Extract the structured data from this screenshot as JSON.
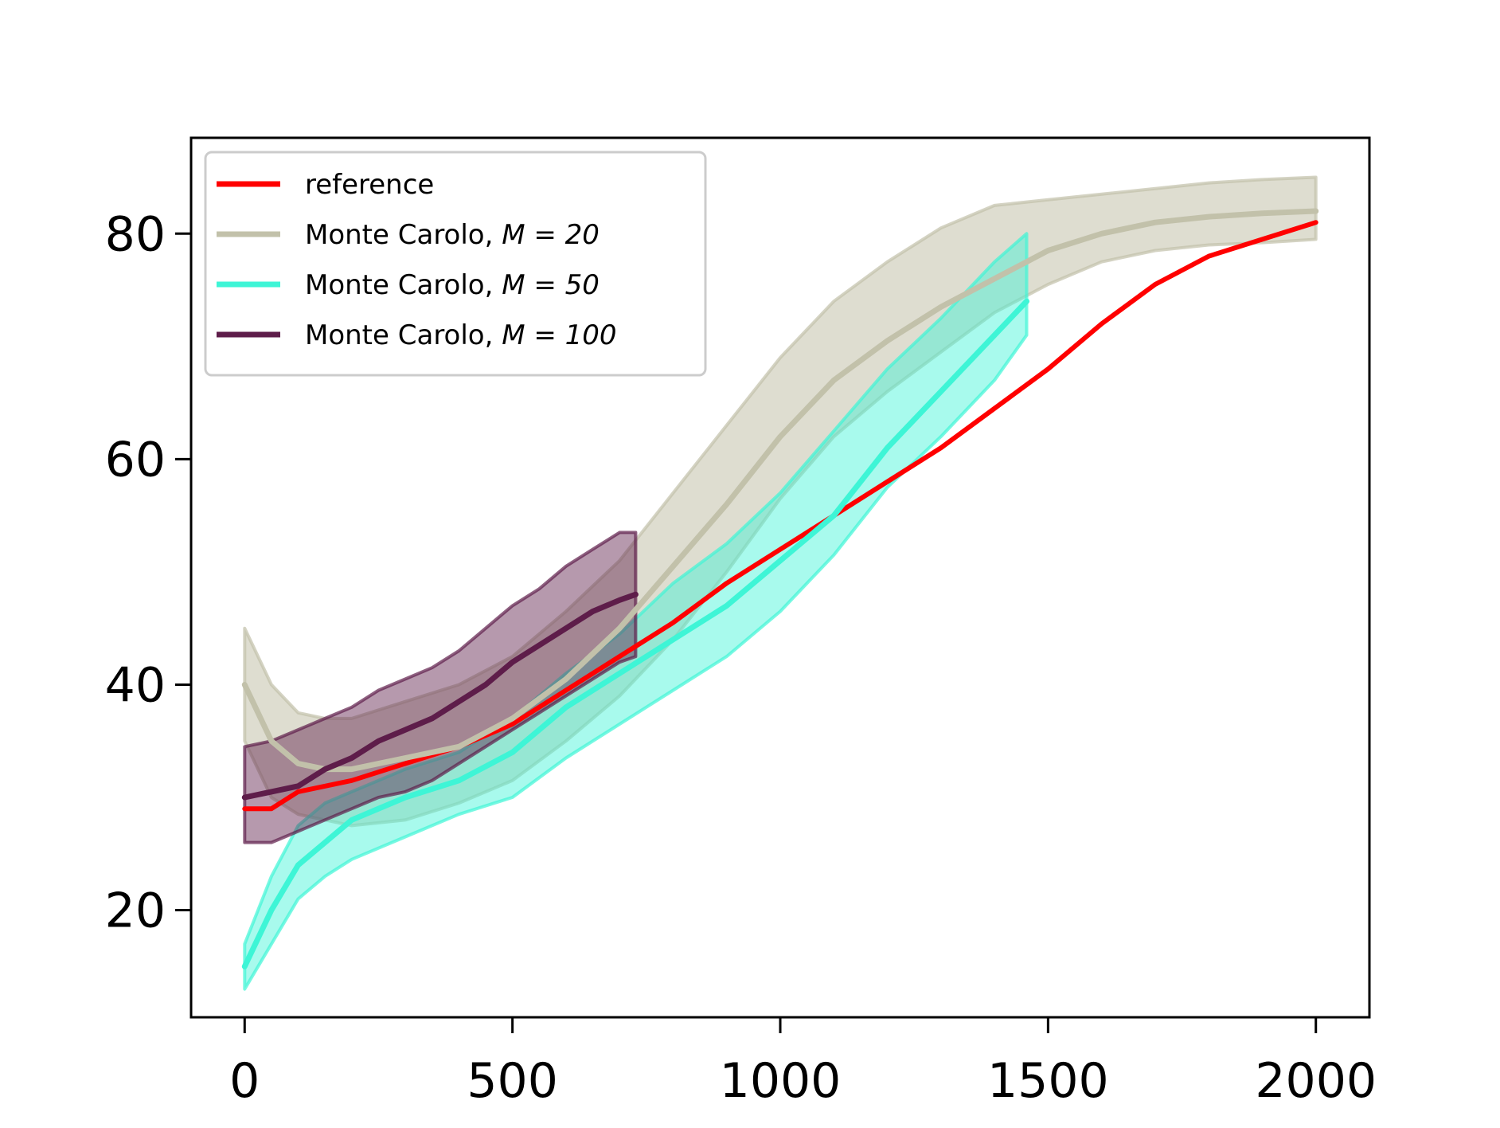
{
  "chart_data": {
    "type": "line",
    "title": "",
    "xlabel": "",
    "ylabel": "",
    "xlim": [
      -100,
      2100
    ],
    "ylim": [
      10.5,
      88.5
    ],
    "xticks": [
      0,
      500,
      1000,
      1500,
      2000
    ],
    "yticks": [
      20,
      40,
      60,
      80
    ],
    "grid": false,
    "legend_position": "upper-left",
    "series": [
      {
        "name": "reference",
        "color": "#ff0000",
        "x": [
          0,
          50,
          100,
          200,
          300,
          400,
          500,
          600,
          700,
          800,
          900,
          1000,
          1100,
          1200,
          1300,
          1400,
          1500,
          1600,
          1700,
          1800,
          1900,
          2000
        ],
        "y": [
          29,
          29,
          30.5,
          31.5,
          33,
          34.5,
          36.5,
          39.5,
          42.5,
          45.5,
          49,
          52,
          55,
          58,
          61,
          64.5,
          68,
          72,
          75.5,
          78,
          79.5,
          81
        ]
      },
      {
        "name": "Monte Carolo, $M=20$",
        "legend_label": "Monte Carolo, ",
        "legend_math": "M = 20",
        "color": "#c2c1aa",
        "band_opacity": 0.55,
        "x": [
          0,
          50,
          100,
          150,
          200,
          300,
          400,
          500,
          600,
          700,
          800,
          900,
          1000,
          1100,
          1200,
          1300,
          1400,
          1500,
          1600,
          1700,
          1800,
          1900,
          2000
        ],
        "y": [
          40,
          35,
          33,
          32.5,
          32.5,
          33.5,
          34.5,
          37,
          40.5,
          45,
          50.5,
          56,
          62,
          67,
          70.5,
          73.5,
          76,
          78.5,
          80,
          81,
          81.5,
          81.8,
          82
        ],
        "lower": [
          35,
          30,
          28.5,
          28,
          27.5,
          28,
          29.5,
          31.5,
          35,
          39,
          44,
          50,
          56.5,
          62,
          66,
          69.5,
          73,
          75.5,
          77.5,
          78.5,
          79,
          79.2,
          79.5
        ],
        "upper": [
          45,
          40,
          37.5,
          37,
          37,
          38.5,
          40,
          42.5,
          46.5,
          51,
          57,
          63,
          69,
          74,
          77.5,
          80.5,
          82.5,
          83,
          83.5,
          84,
          84.5,
          84.8,
          85
        ]
      },
      {
        "name": "Monte Carolo, $M=50$",
        "legend_label": "Monte Carolo, ",
        "legend_math": "M = 50",
        "color": "#3ef5d6",
        "band_opacity": 0.45,
        "x": [
          0,
          50,
          100,
          150,
          200,
          300,
          400,
          500,
          600,
          700,
          800,
          900,
          1000,
          1100,
          1200,
          1300,
          1400,
          1460
        ],
        "y": [
          15,
          20,
          24,
          26,
          28,
          30,
          31.5,
          34,
          38,
          41,
          44,
          47,
          51,
          55,
          61,
          66,
          71,
          74
        ],
        "lower": [
          13,
          17,
          21,
          23,
          24.5,
          26.5,
          28.5,
          30,
          33.5,
          36.5,
          39.5,
          42.5,
          46.5,
          51.5,
          57.5,
          62,
          67,
          71
        ],
        "upper": [
          17,
          23,
          27.5,
          29.5,
          30.5,
          32.5,
          34,
          37,
          41,
          44.5,
          49,
          52.5,
          57,
          62.5,
          68,
          72.5,
          77.5,
          80
        ]
      },
      {
        "name": "Monte Carolo, $M=100$",
        "legend_label": "Monte Carolo, ",
        "legend_math": "M = 100",
        "color": "#5e1d4a",
        "band_opacity": 0.45,
        "x": [
          0,
          50,
          100,
          150,
          200,
          250,
          300,
          350,
          400,
          450,
          500,
          550,
          600,
          650,
          700,
          730
        ],
        "y": [
          30,
          30.5,
          31,
          32.5,
          33.5,
          35,
          36,
          37,
          38.5,
          40,
          42,
          43.5,
          45,
          46.5,
          47.5,
          48
        ],
        "lower": [
          26,
          26,
          27,
          28,
          29,
          30,
          30.5,
          31.5,
          33,
          34.5,
          36,
          37.5,
          39,
          40.5,
          42,
          42.5
        ],
        "upper": [
          34.5,
          35,
          36,
          37,
          38,
          39.5,
          40.5,
          41.5,
          43,
          45,
          47,
          48.5,
          50.5,
          52,
          53.5,
          53.5
        ]
      }
    ]
  }
}
